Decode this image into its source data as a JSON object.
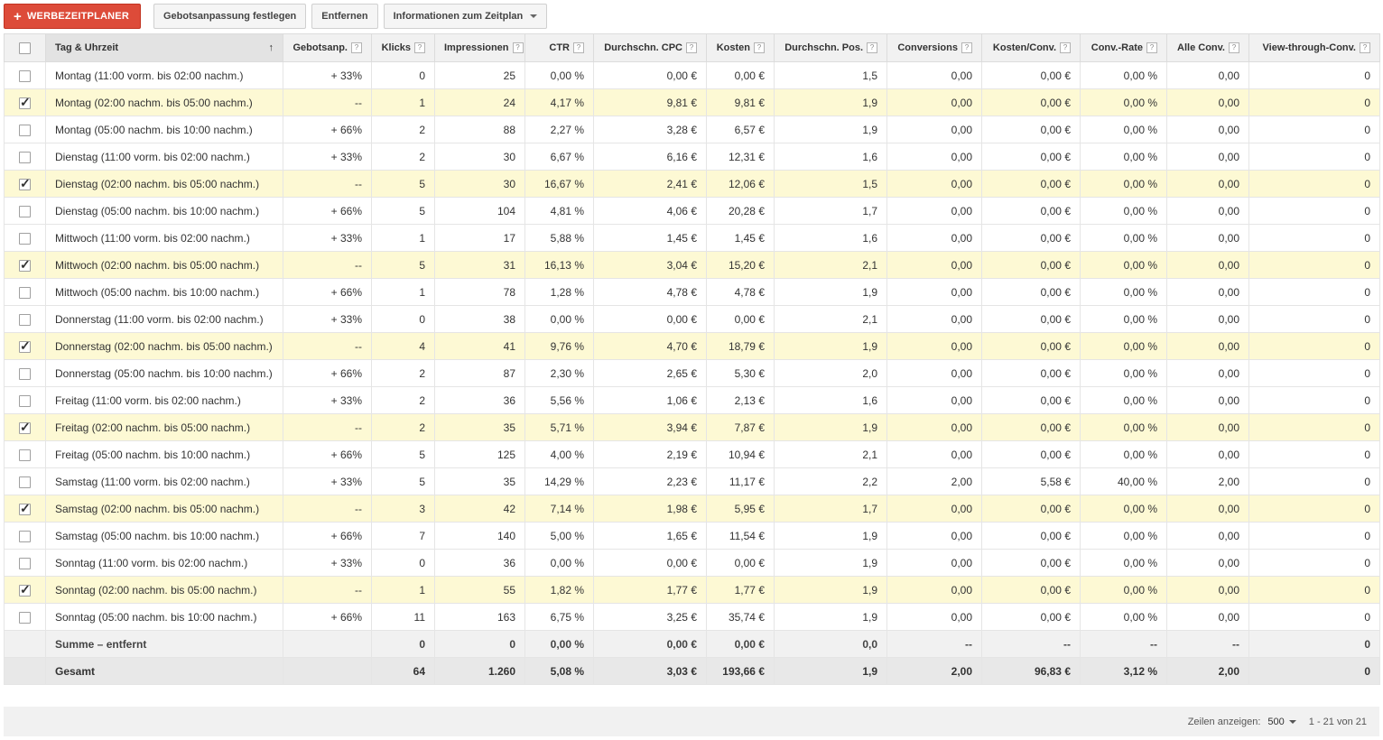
{
  "toolbar": {
    "add_label": "WERBEZEITPLANER",
    "bid_adjust_label": "Gebotsanpassung festlegen",
    "remove_label": "Entfernen",
    "info_label": "Informationen zum Zeitplan"
  },
  "table": {
    "columns": [
      "Tag & Uhrzeit",
      "Gebotsanp.",
      "Klicks",
      "Impressionen",
      "CTR",
      "Durchschn. CPC",
      "Kosten",
      "Durchschn. Pos.",
      "Conversions",
      "Kosten/Conv.",
      "Conv.-Rate",
      "Alle Conv.",
      "View-through-Conv."
    ],
    "help_glyph": "?",
    "sort_glyph": "↑",
    "rows": [
      {
        "checked": false,
        "cells": [
          "Montag (11:00 vorm. bis 02:00 nachm.)",
          "+ 33%",
          "0",
          "25",
          "0,00 %",
          "0,00 €",
          "0,00 €",
          "1,5",
          "0,00",
          "0,00 €",
          "0,00 %",
          "0,00",
          "0"
        ]
      },
      {
        "checked": true,
        "cells": [
          "Montag (02:00 nachm. bis 05:00 nachm.)",
          "--",
          "1",
          "24",
          "4,17 %",
          "9,81 €",
          "9,81 €",
          "1,9",
          "0,00",
          "0,00 €",
          "0,00 %",
          "0,00",
          "0"
        ]
      },
      {
        "checked": false,
        "cells": [
          "Montag (05:00 nachm. bis 10:00 nachm.)",
          "+ 66%",
          "2",
          "88",
          "2,27 %",
          "3,28 €",
          "6,57 €",
          "1,9",
          "0,00",
          "0,00 €",
          "0,00 %",
          "0,00",
          "0"
        ]
      },
      {
        "checked": false,
        "cells": [
          "Dienstag (11:00 vorm. bis 02:00 nachm.)",
          "+ 33%",
          "2",
          "30",
          "6,67 %",
          "6,16 €",
          "12,31 €",
          "1,6",
          "0,00",
          "0,00 €",
          "0,00 %",
          "0,00",
          "0"
        ]
      },
      {
        "checked": true,
        "cells": [
          "Dienstag (02:00 nachm. bis 05:00 nachm.)",
          "--",
          "5",
          "30",
          "16,67 %",
          "2,41 €",
          "12,06 €",
          "1,5",
          "0,00",
          "0,00 €",
          "0,00 %",
          "0,00",
          "0"
        ]
      },
      {
        "checked": false,
        "cells": [
          "Dienstag (05:00 nachm. bis 10:00 nachm.)",
          "+ 66%",
          "5",
          "104",
          "4,81 %",
          "4,06 €",
          "20,28 €",
          "1,7",
          "0,00",
          "0,00 €",
          "0,00 %",
          "0,00",
          "0"
        ]
      },
      {
        "checked": false,
        "cells": [
          "Mittwoch (11:00 vorm. bis 02:00 nachm.)",
          "+ 33%",
          "1",
          "17",
          "5,88 %",
          "1,45 €",
          "1,45 €",
          "1,6",
          "0,00",
          "0,00 €",
          "0,00 %",
          "0,00",
          "0"
        ]
      },
      {
        "checked": true,
        "cells": [
          "Mittwoch (02:00 nachm. bis 05:00 nachm.)",
          "--",
          "5",
          "31",
          "16,13 %",
          "3,04 €",
          "15,20 €",
          "2,1",
          "0,00",
          "0,00 €",
          "0,00 %",
          "0,00",
          "0"
        ]
      },
      {
        "checked": false,
        "cells": [
          "Mittwoch (05:00 nachm. bis 10:00 nachm.)",
          "+ 66%",
          "1",
          "78",
          "1,28 %",
          "4,78 €",
          "4,78 €",
          "1,9",
          "0,00",
          "0,00 €",
          "0,00 %",
          "0,00",
          "0"
        ]
      },
      {
        "checked": false,
        "cells": [
          "Donnerstag (11:00 vorm. bis 02:00 nachm.)",
          "+ 33%",
          "0",
          "38",
          "0,00 %",
          "0,00 €",
          "0,00 €",
          "2,1",
          "0,00",
          "0,00 €",
          "0,00 %",
          "0,00",
          "0"
        ]
      },
      {
        "checked": true,
        "cells": [
          "Donnerstag (02:00 nachm. bis 05:00 nachm.)",
          "--",
          "4",
          "41",
          "9,76 %",
          "4,70 €",
          "18,79 €",
          "1,9",
          "0,00",
          "0,00 €",
          "0,00 %",
          "0,00",
          "0"
        ]
      },
      {
        "checked": false,
        "cells": [
          "Donnerstag (05:00 nachm. bis 10:00 nachm.)",
          "+ 66%",
          "2",
          "87",
          "2,30 %",
          "2,65 €",
          "5,30 €",
          "2,0",
          "0,00",
          "0,00 €",
          "0,00 %",
          "0,00",
          "0"
        ]
      },
      {
        "checked": false,
        "cells": [
          "Freitag (11:00 vorm. bis 02:00 nachm.)",
          "+ 33%",
          "2",
          "36",
          "5,56 %",
          "1,06 €",
          "2,13 €",
          "1,6",
          "0,00",
          "0,00 €",
          "0,00 %",
          "0,00",
          "0"
        ]
      },
      {
        "checked": true,
        "cells": [
          "Freitag (02:00 nachm. bis 05:00 nachm.)",
          "--",
          "2",
          "35",
          "5,71 %",
          "3,94 €",
          "7,87 €",
          "1,9",
          "0,00",
          "0,00 €",
          "0,00 %",
          "0,00",
          "0"
        ]
      },
      {
        "checked": false,
        "cells": [
          "Freitag (05:00 nachm. bis 10:00 nachm.)",
          "+ 66%",
          "5",
          "125",
          "4,00 %",
          "2,19 €",
          "10,94 €",
          "2,1",
          "0,00",
          "0,00 €",
          "0,00 %",
          "0,00",
          "0"
        ]
      },
      {
        "checked": false,
        "cells": [
          "Samstag (11:00 vorm. bis 02:00 nachm.)",
          "+ 33%",
          "5",
          "35",
          "14,29 %",
          "2,23 €",
          "11,17 €",
          "2,2",
          "2,00",
          "5,58 €",
          "40,00 %",
          "2,00",
          "0"
        ]
      },
      {
        "checked": true,
        "cells": [
          "Samstag (02:00 nachm. bis 05:00 nachm.)",
          "--",
          "3",
          "42",
          "7,14 %",
          "1,98 €",
          "5,95 €",
          "1,7",
          "0,00",
          "0,00 €",
          "0,00 %",
          "0,00",
          "0"
        ]
      },
      {
        "checked": false,
        "cells": [
          "Samstag (05:00 nachm. bis 10:00 nachm.)",
          "+ 66%",
          "7",
          "140",
          "5,00 %",
          "1,65 €",
          "11,54 €",
          "1,9",
          "0,00",
          "0,00 €",
          "0,00 %",
          "0,00",
          "0"
        ]
      },
      {
        "checked": false,
        "cells": [
          "Sonntag (11:00 vorm. bis 02:00 nachm.)",
          "+ 33%",
          "0",
          "36",
          "0,00 %",
          "0,00 €",
          "0,00 €",
          "1,9",
          "0,00",
          "0,00 €",
          "0,00 %",
          "0,00",
          "0"
        ]
      },
      {
        "checked": true,
        "cells": [
          "Sonntag (02:00 nachm. bis 05:00 nachm.)",
          "--",
          "1",
          "55",
          "1,82 %",
          "1,77 €",
          "1,77 €",
          "1,9",
          "0,00",
          "0,00 €",
          "0,00 %",
          "0,00",
          "0"
        ]
      },
      {
        "checked": false,
        "cells": [
          "Sonntag (05:00 nachm. bis 10:00 nachm.)",
          "+ 66%",
          "11",
          "163",
          "6,75 %",
          "3,25 €",
          "35,74 €",
          "1,9",
          "0,00",
          "0,00 €",
          "0,00 %",
          "0,00",
          "0"
        ]
      }
    ],
    "summary": {
      "cells": [
        "Summe – entfernt",
        "",
        "0",
        "0",
        "0,00 %",
        "0,00 €",
        "0,00 €",
        "0,0",
        "--",
        "--",
        "--",
        "--",
        "0"
      ]
    },
    "total": {
      "cells": [
        "Gesamt",
        "",
        "64",
        "1.260",
        "5,08 %",
        "3,03 €",
        "193,66 €",
        "1,9",
        "2,00",
        "96,83 €",
        "3,12 %",
        "2,00",
        "0"
      ]
    }
  },
  "footer": {
    "rows_label": "Zeilen anzeigen:",
    "rows_value": "500",
    "range": "1 - 21 von 21"
  },
  "colors": {
    "accent": "#dd4b39",
    "selected_row": "#fdf9d4",
    "header_bg": "#f1f1f1"
  }
}
